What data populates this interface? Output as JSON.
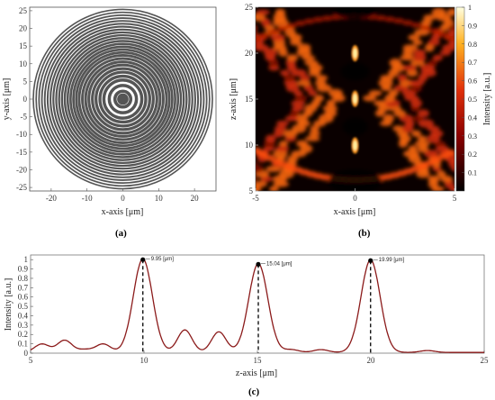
{
  "chart_data": [
    {
      "panel": "(a)",
      "type": "scatter",
      "description_kind": "concentric zone rings",
      "xlabel": "x-axis [μm]",
      "ylabel": "y-axis [μm]",
      "xlim": [
        -26,
        26
      ],
      "ylim": [
        -26,
        26
      ],
      "xticks": [
        -20,
        -10,
        0,
        10,
        20
      ],
      "yticks": [
        -25,
        -20,
        -15,
        -10,
        -5,
        0,
        5,
        10,
        15,
        20,
        25
      ],
      "ring_radii": [
        2.2,
        3.8,
        5.3,
        6.4,
        7.5,
        8.5,
        9.5,
        10.4,
        11.3,
        12.2,
        13.0,
        13.8,
        14.6,
        15.4,
        16.2,
        17.0,
        17.8,
        18.6,
        19.4,
        20.2,
        21.0,
        21.8,
        22.6,
        23.4,
        24.2,
        25.0
      ],
      "center_dot_radius": 1.6,
      "color": "#555555"
    },
    {
      "panel": "(b)",
      "type": "heatmap",
      "xlabel": "x-axis [μm]",
      "ylabel": "z-axis [μm]",
      "xlim": [
        -5,
        5
      ],
      "ylim": [
        5,
        25
      ],
      "xticks": [
        -5,
        0,
        5
      ],
      "yticks": [
        5,
        10,
        15,
        20,
        25
      ],
      "colorbar_label": "Intensity [a.u.]",
      "colorbar_ticks": [
        0.1,
        0.2,
        0.3,
        0.4,
        0.5,
        0.6,
        0.7,
        0.8,
        0.9,
        1
      ],
      "hotspots_z": [
        9.95,
        15.04,
        19.99
      ]
    },
    {
      "panel": "(c)",
      "type": "line",
      "xlabel": "z-axis [μm]",
      "ylabel": "Intensity [a.u.]",
      "xlim": [
        5,
        25
      ],
      "ylim": [
        0,
        1.05
      ],
      "xticks": [
        5,
        10,
        15,
        20,
        25
      ],
      "yticks": [
        0,
        0.1,
        0.2,
        0.3,
        0.4,
        0.5,
        0.6,
        0.7,
        0.8,
        0.9,
        1
      ],
      "color": "#8b1a1a",
      "peaks": [
        {
          "z": 9.95,
          "value": 1.0,
          "label": "9.95 [μm]"
        },
        {
          "z": 15.04,
          "value": 0.95,
          "label": "15.04 [μm]"
        },
        {
          "z": 19.99,
          "value": 0.99,
          "label": "19.99 [μm]"
        }
      ],
      "side_lobes": [
        {
          "z": 5.5,
          "value": 0.09
        },
        {
          "z": 6.5,
          "value": 0.13
        },
        {
          "z": 7.4,
          "value": 0.03
        },
        {
          "z": 8.2,
          "value": 0.09
        },
        {
          "z": 11.8,
          "value": 0.24
        },
        {
          "z": 13.3,
          "value": 0.22
        },
        {
          "z": 16.5,
          "value": 0.03
        },
        {
          "z": 17.8,
          "value": 0.03
        },
        {
          "z": 22.5,
          "value": 0.02
        }
      ]
    }
  ]
}
